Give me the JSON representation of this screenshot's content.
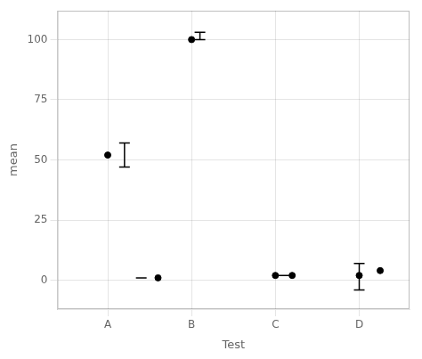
{
  "chart_data": {
    "type": "scatter",
    "xlabel": "Test",
    "ylabel": "mean",
    "x": [
      1.0,
      2.0,
      3.0,
      4.0,
      1.6,
      3.2,
      4.25
    ],
    "values": [
      52,
      100,
      2,
      2,
      1,
      2,
      4
    ],
    "color": "#000000",
    "errorbars": [
      {
        "x": 1.2,
        "ymin": 47,
        "ymax": 57
      },
      {
        "x": 2.1,
        "ymin": 100,
        "ymax": 103
      },
      {
        "x": 1.4,
        "ymin": 1,
        "ymax": 1
      },
      {
        "x": 3.1,
        "ymin": 2,
        "ymax": 2
      },
      {
        "x": 4.0,
        "ymin": -4,
        "ymax": 7
      }
    ],
    "xlim": [
      0.4,
      4.6
    ],
    "xticks": [
      {
        "value": 1,
        "label": "A"
      },
      {
        "value": 2,
        "label": "B"
      },
      {
        "value": 3,
        "label": "C"
      },
      {
        "value": 4,
        "label": "D"
      }
    ],
    "ylim": [
      -12,
      112
    ],
    "yticks": [
      0,
      25,
      50,
      75,
      100
    ],
    "grid": true
  }
}
